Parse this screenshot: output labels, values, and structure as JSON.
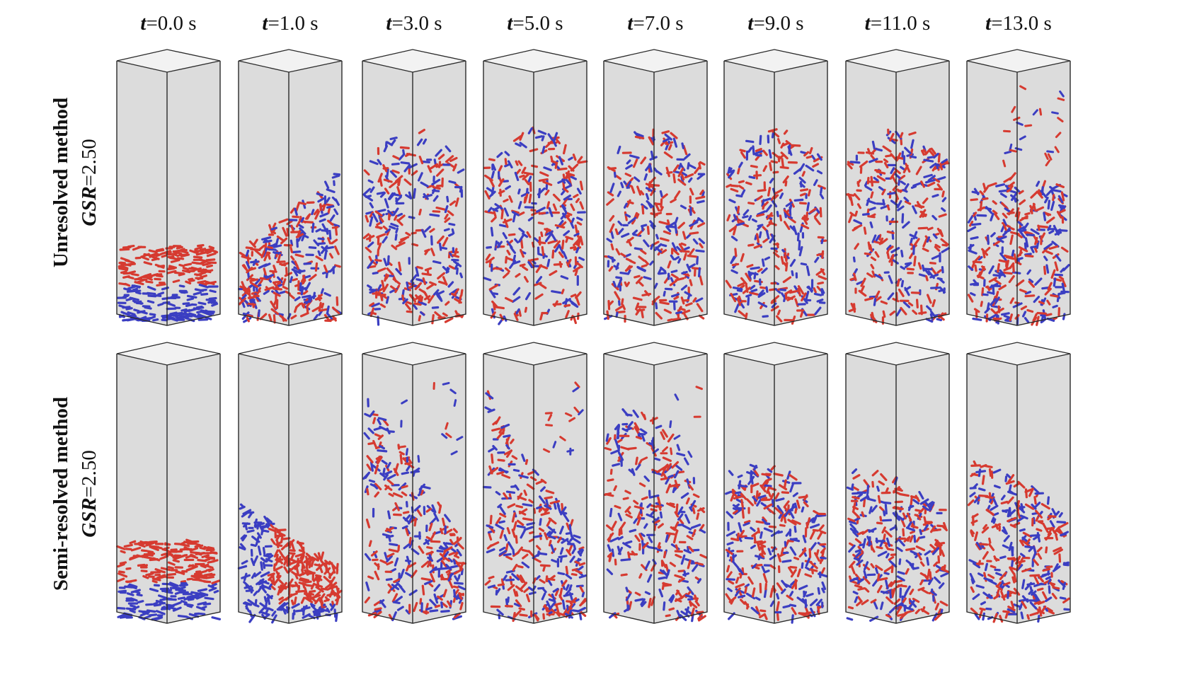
{
  "time_labels": [
    {
      "var": "t",
      "value": "=0.0 s"
    },
    {
      "var": "t",
      "value": "=1.0 s"
    },
    {
      "var": "t",
      "value": "=3.0 s"
    },
    {
      "var": "t",
      "value": "=5.0 s"
    },
    {
      "var": "t",
      "value": "=7.0 s"
    },
    {
      "var": "t",
      "value": "=9.0 s"
    },
    {
      "var": "t",
      "value": "=11.0 s"
    },
    {
      "var": "t",
      "value": "=13.0 s"
    }
  ],
  "rows": [
    {
      "method": "Unresolved method",
      "gsr_var": "GSR",
      "gsr_value": "=2.50",
      "states": [
        "layered",
        "lifted",
        "mixed",
        "mixed",
        "mixed",
        "mixed",
        "mixed",
        "mixed-eject"
      ]
    },
    {
      "method": "Semi-resolved method",
      "gsr_var": "GSR",
      "gsr_value": "=2.50",
      "states": [
        "layered",
        "tilted",
        "wave",
        "wave",
        "burst",
        "heap",
        "dome",
        "dome"
      ]
    }
  ],
  "colors": {
    "particle_a": "#d63a30",
    "particle_b": "#3b3ec2",
    "box_fill": "#dcdcdc",
    "box_top": "#f2f2f2",
    "box_edge": "#2a2a2a"
  }
}
